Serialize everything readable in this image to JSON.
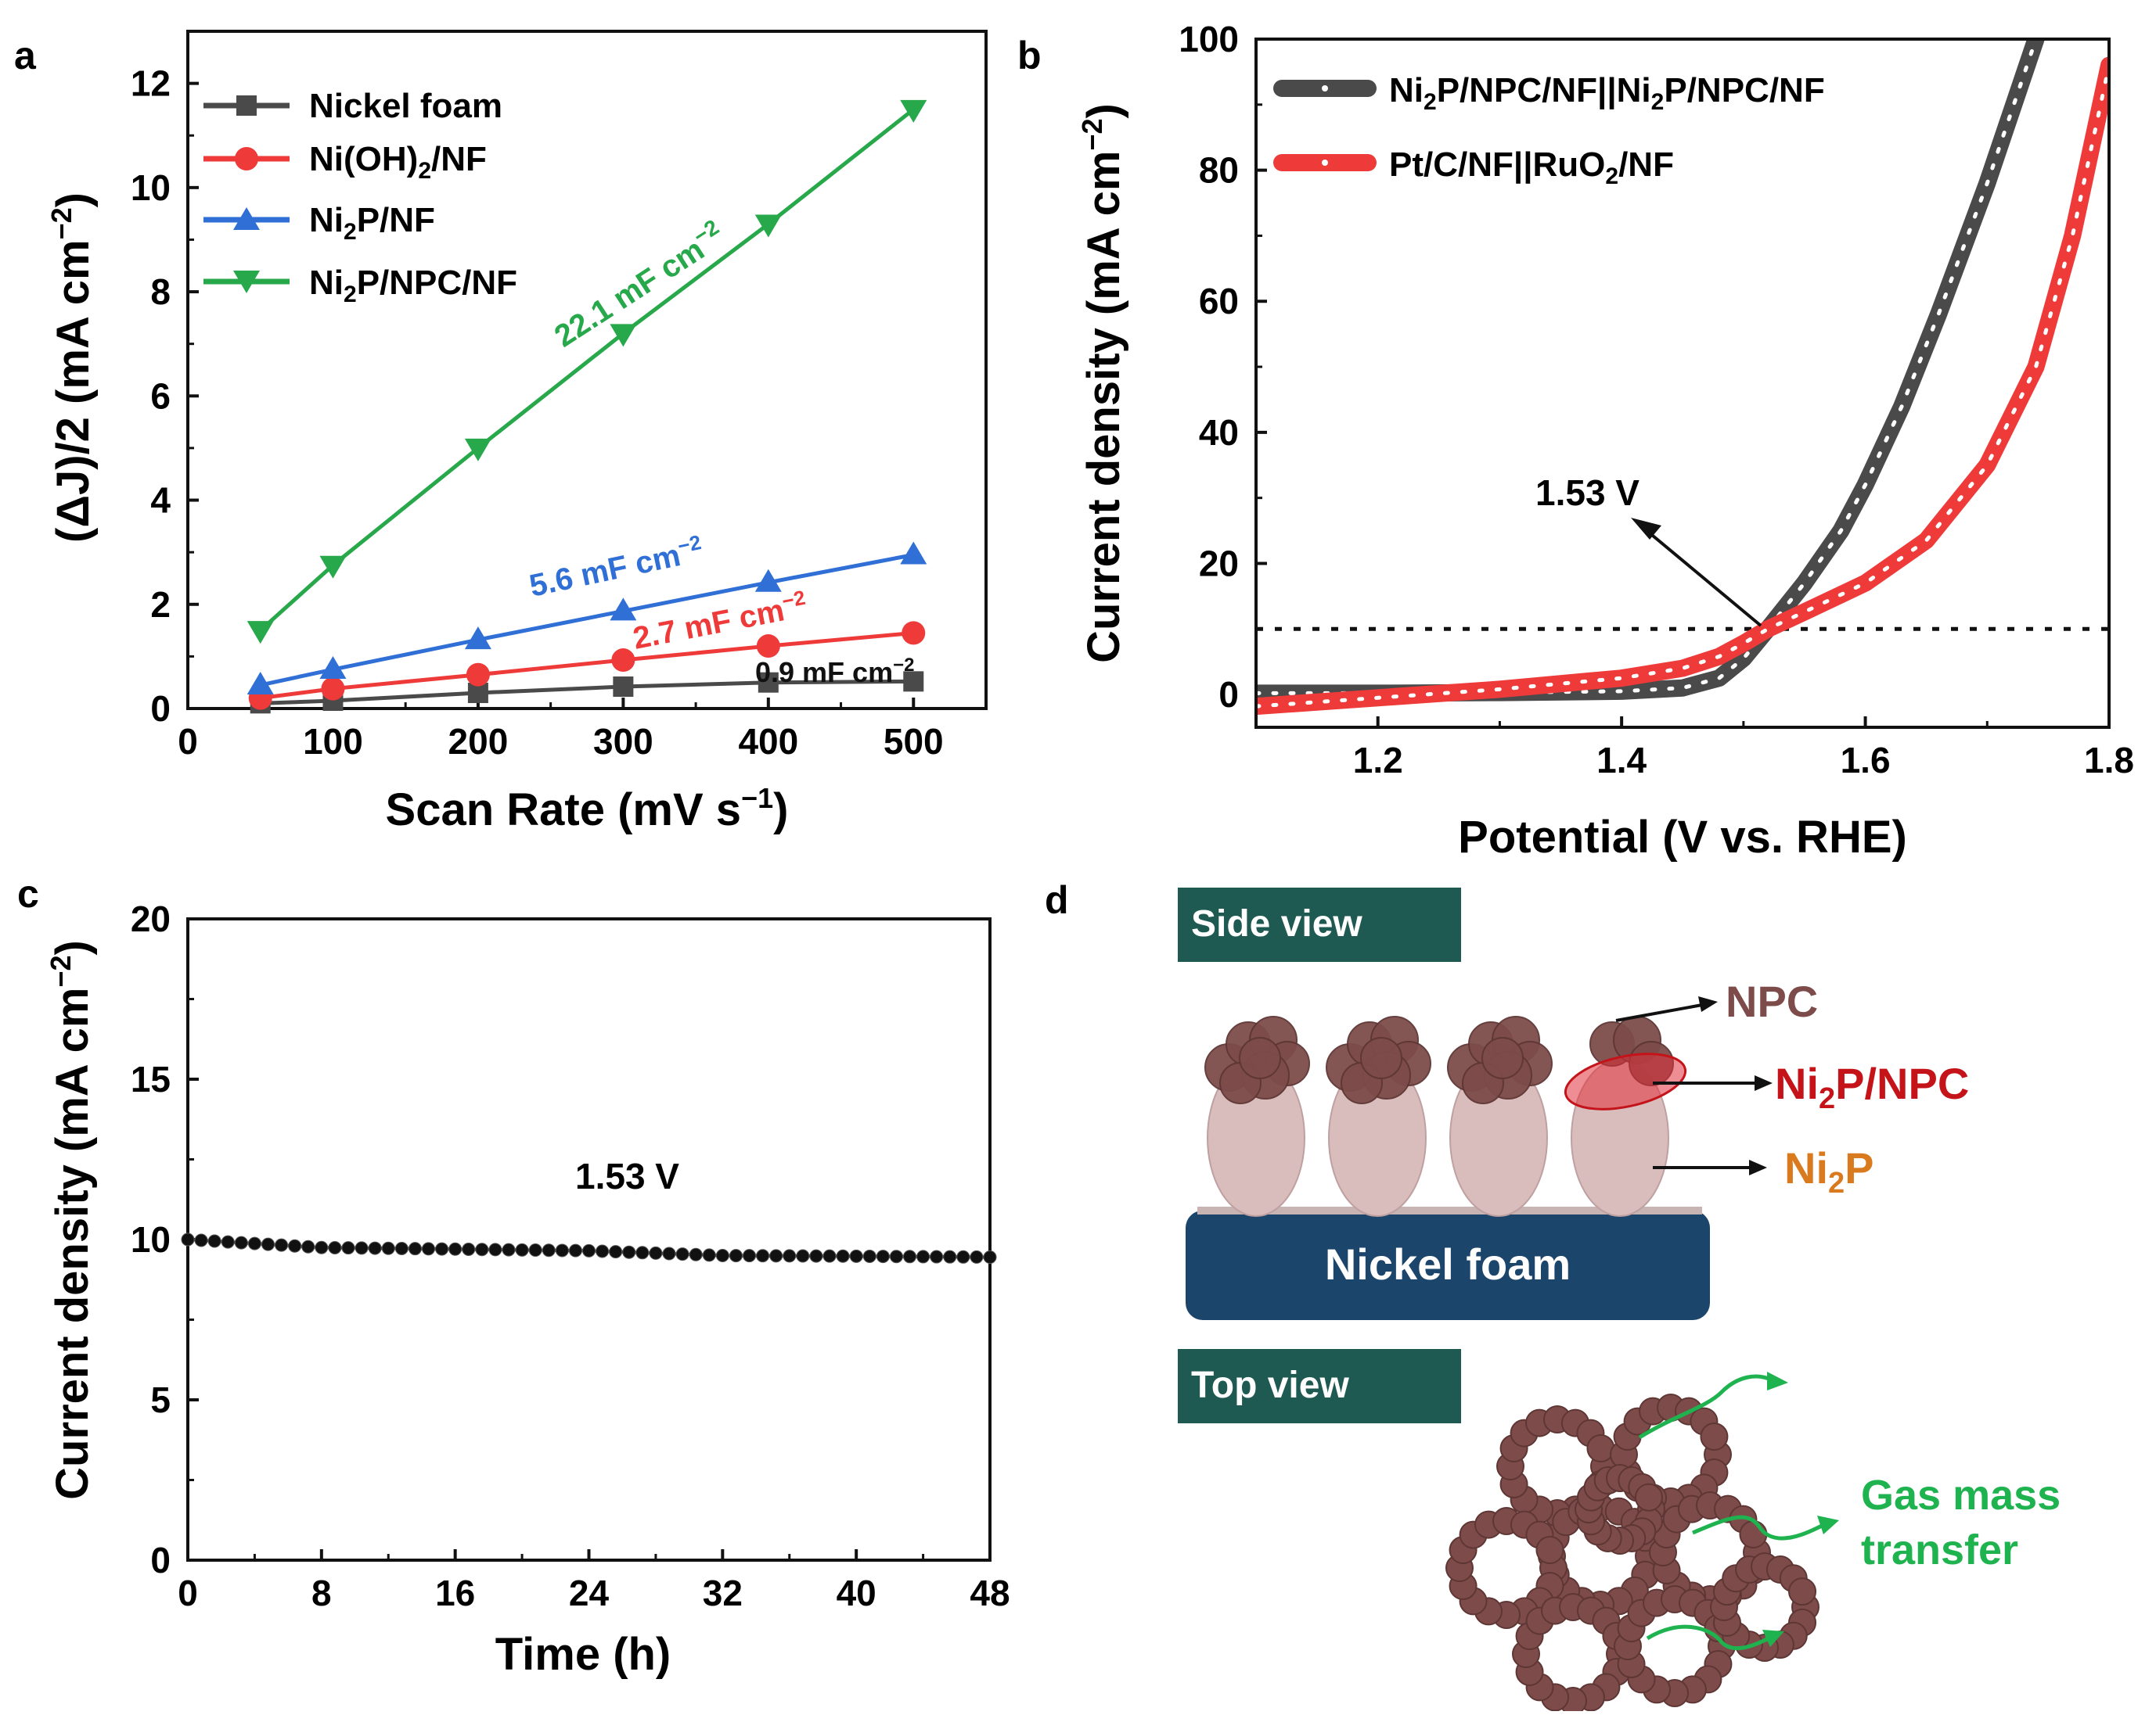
{
  "colors": {
    "black": "#111111",
    "grey": "#4a4a4a",
    "red": "#ef3a3a",
    "blue": "#2f6fd6",
    "green": "#27a84a",
    "dark_teal": "#1f5a52",
    "navy": "#1c456b",
    "npc_brown": "#7d4c4a",
    "ni2p_pink": "#d9bcbc",
    "label_red": "#c4141a",
    "label_orange": "#d97a1e",
    "gas_green": "#1fb350"
  },
  "chart_data": [
    {
      "panel": "a",
      "type": "line",
      "xlabel": "Scan Rate (mV s",
      "xlabel_sup": "−1",
      "xlabel_tail": ")",
      "ylabel": "(ΔJ)/2 (mA cm",
      "ylabel_sup": "−2",
      "ylabel_tail": ")",
      "xlim": [
        0,
        550
      ],
      "ylim": [
        0,
        13
      ],
      "xticks": [
        0,
        100,
        200,
        300,
        400,
        500
      ],
      "yticks": [
        0,
        2,
        4,
        6,
        8,
        10,
        12
      ],
      "x": [
        50,
        100,
        200,
        300,
        400,
        500
      ],
      "series": [
        {
          "name": "Nickel foam",
          "marker": "square",
          "color": "#4a4a4a",
          "values": [
            0.1,
            0.15,
            0.3,
            0.42,
            0.5,
            0.52
          ]
        },
        {
          "name": "Ni(OH)2/NF",
          "marker": "circle",
          "color": "#ef3a3a",
          "values": [
            0.2,
            0.38,
            0.65,
            0.93,
            1.2,
            1.45
          ]
        },
        {
          "name": "Ni2P/NF",
          "marker": "triangle-up",
          "color": "#2f6fd6",
          "values": [
            0.45,
            0.75,
            1.32,
            1.87,
            2.42,
            2.95
          ]
        },
        {
          "name": "Ni2P/NPC/NF",
          "marker": "triangle-down",
          "color": "#27a84a",
          "values": [
            1.5,
            2.75,
            5.0,
            7.2,
            9.3,
            11.5
          ]
        }
      ],
      "legend": [
        {
          "main": "Nickel foam"
        },
        {
          "pre": "Ni(OH)",
          "sub": "2",
          "post": "/NF"
        },
        {
          "pre": "Ni",
          "sub": "2",
          "post": "P/NF"
        },
        {
          "pre": "Ni",
          "sub": "2",
          "post": "P/NPC/NF"
        }
      ],
      "annotations": [
        {
          "text": "22.1 mF cm",
          "sup": "−2",
          "color": "#27a84a"
        },
        {
          "text": "5.6 mF cm",
          "sup": "−2",
          "color": "#2f6fd6"
        },
        {
          "text": "2.7 mF cm",
          "sup": "−2",
          "color": "#ef3a3a"
        },
        {
          "text": "0.9 mF cm",
          "sup": "−2",
          "color": "#111111"
        }
      ]
    },
    {
      "panel": "b",
      "type": "line",
      "xlabel": "Potential (V vs. RHE)",
      "ylabel": "Current density (mA cm",
      "ylabel_sup": "−2",
      "ylabel_tail": ")",
      "xlim": [
        1.1,
        1.8
      ],
      "ylim": [
        -5,
        100
      ],
      "xticks": [
        1.2,
        1.4,
        1.6,
        1.8
      ],
      "yticks": [
        0,
        20,
        40,
        60,
        80,
        100
      ],
      "reference_line_y": 10,
      "series": [
        {
          "name": "Ni2P/NPC/NF||Ni2P/NPC/NF",
          "color": "#4a4a4a",
          "x": [
            1.1,
            1.2,
            1.3,
            1.4,
            1.45,
            1.48,
            1.5,
            1.52,
            1.55,
            1.58,
            1.6,
            1.63,
            1.66,
            1.7,
            1.74
          ],
          "values": [
            0.2,
            0.2,
            0.3,
            0.5,
            1.0,
            2.5,
            5.5,
            10.0,
            17.0,
            25.0,
            32.0,
            44.0,
            58.0,
            78.0,
            100.0
          ]
        },
        {
          "name": "Pt/C/NF||RuO2/NF",
          "color": "#ef3a3a",
          "x": [
            1.1,
            1.2,
            1.3,
            1.4,
            1.45,
            1.48,
            1.5,
            1.52,
            1.55,
            1.6,
            1.65,
            1.7,
            1.74,
            1.77,
            1.8
          ],
          "values": [
            -1.8,
            -0.5,
            0.8,
            2.5,
            4.0,
            5.8,
            7.8,
            10.0,
            12.6,
            17.0,
            23.5,
            35.0,
            50.0,
            70.0,
            96.0
          ]
        }
      ],
      "legend": [
        {
          "parts": [
            "Ni",
            "2",
            "P/NPC/NF||Ni",
            "2",
            "P/NPC/NF"
          ]
        },
        {
          "parts": [
            "Pt/C/NF||RuO",
            "2",
            "/NF"
          ]
        }
      ],
      "annotation": "1.53 V"
    },
    {
      "panel": "c",
      "type": "scatter",
      "xlabel": "Time (h)",
      "ylabel": "Current density (mA cm",
      "ylabel_sup": "−2",
      "ylabel_tail": ")",
      "xlim": [
        0,
        48
      ],
      "ylim": [
        0,
        20
      ],
      "xticks": [
        0,
        8,
        16,
        24,
        32,
        40,
        48
      ],
      "yticks": [
        0,
        5,
        10,
        15,
        20
      ],
      "series": [
        {
          "name": "1.53 V",
          "color": "#111111",
          "x": [
            0,
            8,
            16,
            24,
            32,
            40,
            48
          ],
          "values": [
            10.0,
            9.75,
            9.7,
            9.65,
            9.5,
            9.48,
            9.45
          ]
        }
      ],
      "annotation": "1.53 V"
    }
  ],
  "schematic": {
    "panel": "d",
    "side_view_title": "Side view",
    "top_view_title": "Top view",
    "label_npc": "NPC",
    "label_ni2p_npc": {
      "pre": "Ni",
      "sub": "2",
      "post": "P/NPC"
    },
    "label_ni2p": {
      "pre": "Ni",
      "sub": "2",
      "post": "P"
    },
    "substrate_label": "Nickel foam",
    "gas_label_line1": "Gas mass",
    "gas_label_line2": "transfer"
  }
}
